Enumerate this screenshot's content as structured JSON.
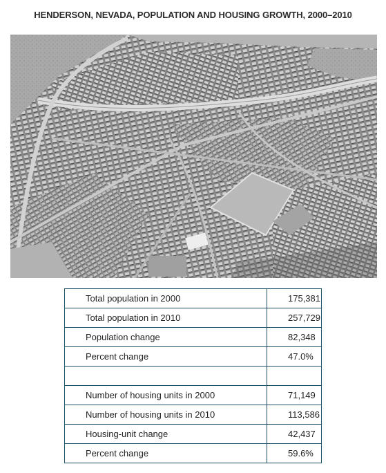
{
  "title": "HENDERSON, NEVADA, POPULATION AND HOUSING GROWTH, 2000–2010",
  "photo": {
    "icon": "aerial-subdivision-photo"
  },
  "table": {
    "rows": [
      {
        "label": "Total population in 2000",
        "value": "175,381"
      },
      {
        "label": "Total population in 2010",
        "value": "257,729"
      },
      {
        "label": "Population change",
        "value": "82,348"
      },
      {
        "label": "Percent change",
        "value": "47.0%"
      },
      {
        "label": "",
        "value": ""
      },
      {
        "label": "Number of housing units in 2000",
        "value": "71,149"
      },
      {
        "label": "Number of housing units in 2010",
        "value": "113,586"
      },
      {
        "label": "Housing-unit change",
        "value": "42,437"
      },
      {
        "label": "Percent change",
        "value": "59.6%"
      }
    ]
  }
}
